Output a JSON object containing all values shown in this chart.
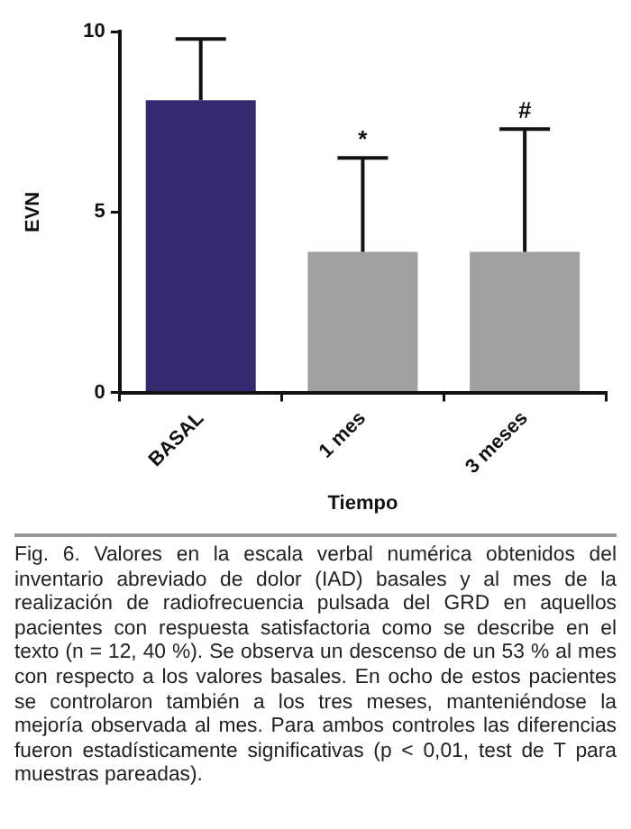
{
  "chart_data": {
    "type": "bar",
    "categories": [
      "BASAL",
      "1 mes",
      "3 meses"
    ],
    "values": [
      8.1,
      3.9,
      3.9
    ],
    "colors": [
      "#352a72",
      "#a0a0a0",
      "#a0a0a0"
    ],
    "errors": [
      [
        8.1,
        9.8
      ],
      [
        3.9,
        6.5
      ],
      [
        3.9,
        7.3
      ]
    ],
    "xlabel": "Tiempo",
    "ylabel": "EVN",
    "ylim": [
      0,
      10
    ],
    "yticks": [
      0,
      5,
      10
    ],
    "grid": false,
    "legend": false,
    "annotations": [
      {
        "text": "*",
        "x": "1 mes",
        "y": 6.5
      },
      {
        "text": "#",
        "x": "3 meses",
        "y": 7.3
      },
      "Fig. 6. Valores en la escala verbal numérica obtenidos del inventario abreviado de dolor (IAD) basales y al mes de la realización de radiofrecuencia pulsada del GRD en aquellos pacientes con respuesta satisfactoria como se describe en el texto (n = 12, 40 %). Se observa un descenso de un 53 % al mes con respecto a los valores basales. En ocho de estos pacientes se controlaron también a los tres meses, manteniéndose la mejoría observada al mes. Para ambos controles las diferencias fueron estadísticamente significativas (p < 0,01, test de T para muestras pareadas)."
    ]
  }
}
